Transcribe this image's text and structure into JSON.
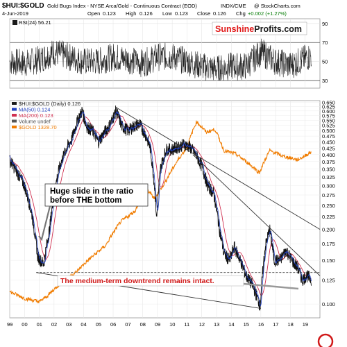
{
  "header": {
    "symbol": "$HUI:$GOLD",
    "name": "Gold Bugs Index - NYSE Arca/Gold - Continuous Contract (EOD)",
    "exchange": "INDX/CME",
    "credit": "@ StockCharts.com",
    "date": "4-Jun-2019",
    "open_label": "Open",
    "open": "0.123",
    "high_label": "High",
    "high": "0.126",
    "low_label": "Low",
    "low": "0.123",
    "close_label": "Close",
    "close": "0.126",
    "chg_label": "Chg",
    "chg": "+0.002 (+1.27%)"
  },
  "brand": {
    "part1": "Sunshine",
    "part2": "Profits.com"
  },
  "rsi_label": "RSI(24) 56.21",
  "legend": [
    {
      "text": "$HUI:$GOLD (Daily) 0.126",
      "color": "#1a1a1a"
    },
    {
      "text": "MA(50) 0.124",
      "color": "#1f3fbf"
    },
    {
      "text": "MA(200) 0.123",
      "color": "#d03050"
    },
    {
      "text": "Volume undef",
      "color": "#555555"
    },
    {
      "text": "$GOLD 1328.70",
      "color": "#f07c00"
    }
  ],
  "annotations": {
    "slide": [
      "Huge slide in the ratio",
      "before THE bottom"
    ],
    "downtrend": "The medium-term downtrend remains intact."
  },
  "chart_data": [
    {
      "type": "line",
      "title": "RSI(24) 56.21",
      "y_ticks": [
        30,
        50,
        70,
        90
      ],
      "ylim": [
        22,
        95
      ],
      "x": [
        1999,
        2000,
        2001,
        2002,
        2003,
        2004,
        2005,
        2006,
        2007,
        2008,
        2009,
        2010,
        2011,
        2012,
        2013,
        2014,
        2015,
        2016,
        2017,
        2018,
        2019.42
      ],
      "values": [
        50,
        48,
        52,
        60,
        55,
        50,
        50,
        55,
        52,
        48,
        55,
        55,
        50,
        45,
        42,
        45,
        45,
        60,
        50,
        46,
        56.21
      ]
    },
    {
      "type": "line",
      "title": "$HUI:$GOLD (Daily) 0.126",
      "scale": "log",
      "ylim": [
        0.088,
        0.66
      ],
      "xlim": [
        1999.0,
        2020.0
      ],
      "y_ticks": [
        0.65,
        0.625,
        0.6,
        0.575,
        0.55,
        0.525,
        0.5,
        0.475,
        0.45,
        0.425,
        0.4,
        0.375,
        0.35,
        0.325,
        0.3,
        0.275,
        0.25,
        0.225,
        0.2,
        0.175,
        0.15,
        0.125,
        0.1
      ],
      "x_ticks": [
        "99",
        "00",
        "01",
        "02",
        "03",
        "04",
        "05",
        "06",
        "07",
        "08",
        "09",
        "10",
        "11",
        "12",
        "13",
        "14",
        "15",
        "16",
        "17",
        "18",
        "19"
      ],
      "series": [
        {
          "name": "$HUI:$GOLD (Daily) 0.126",
          "x": [
            1999.0,
            1999.5,
            2000.0,
            2000.5,
            2000.9,
            2001.3,
            2001.7,
            2002.0,
            2002.4,
            2002.8,
            2003.2,
            2003.6,
            2003.9,
            2004.2,
            2004.6,
            2005.0,
            2005.4,
            2005.8,
            2006.2,
            2006.6,
            2007.0,
            2007.4,
            2007.8,
            2008.2,
            2008.5,
            2008.8,
            2008.95,
            2009.2,
            2009.6,
            2010.0,
            2010.4,
            2010.8,
            2011.2,
            2011.6,
            2012.0,
            2012.4,
            2012.8,
            2013.2,
            2013.5,
            2013.9,
            2014.2,
            2014.6,
            2015.0,
            2015.4,
            2015.8,
            2015.95,
            2016.3,
            2016.6,
            2016.9,
            2017.3,
            2017.7,
            2018.1,
            2018.5,
            2018.8,
            2019.1,
            2019.42
          ],
          "values": [
            0.38,
            0.34,
            0.3,
            0.23,
            0.155,
            0.145,
            0.2,
            0.28,
            0.36,
            0.42,
            0.46,
            0.55,
            0.6,
            0.52,
            0.5,
            0.45,
            0.49,
            0.53,
            0.6,
            0.52,
            0.5,
            0.52,
            0.53,
            0.48,
            0.43,
            0.3,
            0.22,
            0.35,
            0.42,
            0.42,
            0.43,
            0.44,
            0.43,
            0.4,
            0.36,
            0.3,
            0.28,
            0.2,
            0.16,
            0.15,
            0.17,
            0.15,
            0.13,
            0.12,
            0.105,
            0.098,
            0.17,
            0.2,
            0.15,
            0.15,
            0.165,
            0.15,
            0.14,
            0.125,
            0.13,
            0.126
          ]
        },
        {
          "name": "$GOLD 1328.70",
          "x": [
            1999.0,
            2000.0,
            2001.0,
            2001.5,
            2002.5,
            2003.5,
            2004.5,
            2005.5,
            2006.5,
            2007.5,
            2008.2,
            2008.8,
            2009.5,
            2010.5,
            2011.0,
            2011.65,
            2012.3,
            2012.9,
            2013.5,
            2014.3,
            2015.0,
            2015.9,
            2016.6,
            2017.5,
            2018.5,
            2019.42
          ],
          "values": [
            290,
            270,
            260,
            275,
            320,
            360,
            420,
            480,
            620,
            700,
            900,
            800,
            950,
            1250,
            1400,
            1850,
            1650,
            1700,
            1350,
            1300,
            1200,
            1060,
            1350,
            1270,
            1220,
            1328.7
          ]
        }
      ],
      "trendlines": [
        {
          "x1": 2006.2,
          "y1": 0.62,
          "x2": 2020.0,
          "y2": 0.2
        },
        {
          "x1": 2011.4,
          "y1": 0.4,
          "x2": 2020.0,
          "y2": 0.13
        },
        {
          "x1": 2000.8,
          "y1": 0.134,
          "x2": 2016.0,
          "y2": 0.096
        }
      ],
      "reference_line": 0.134
    }
  ]
}
